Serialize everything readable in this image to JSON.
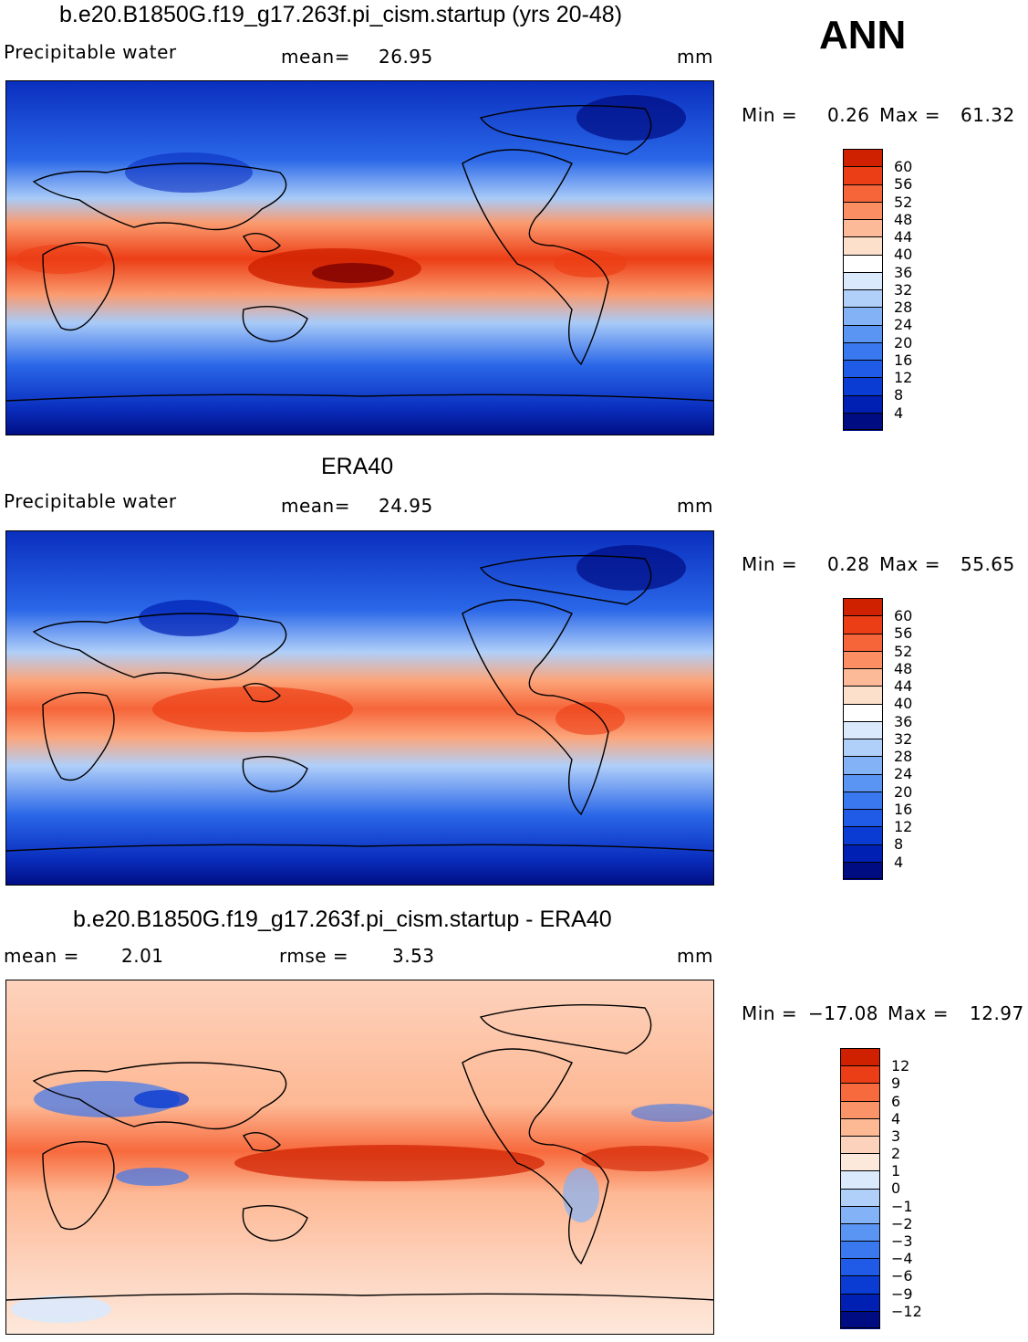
{
  "header": {
    "ann_label": "ANN"
  },
  "colors": {
    "abs_scale": [
      "#000c82",
      "#0020b4",
      "#0a3bd2",
      "#1f5be6",
      "#3a78ef",
      "#5b95f3",
      "#83b2f6",
      "#b0cff9",
      "#dae9fc",
      "#ffffff",
      "#fde0cc",
      "#fdba98",
      "#fb8f63",
      "#f6653a",
      "#ec3e16",
      "#cf2000",
      "#9c0b00",
      "#6e0000"
    ],
    "diff_scale": [
      "#000c82",
      "#0020b4",
      "#0a3bd2",
      "#1f5be6",
      "#3a78ef",
      "#5b95f3",
      "#83b2f6",
      "#b0cff9",
      "#dae9fc",
      "#fde9dc",
      "#fdd2bc",
      "#fdb894",
      "#fb9368",
      "#f76a3d",
      "#ec3e16",
      "#cf2000",
      "#9c0b00",
      "#6e0000"
    ]
  },
  "panels": [
    {
      "title": "b.e20.B1850G.f19_g17.263f.pi_cism.startup (yrs 20-48)",
      "left_label": "Precipitable  water",
      "mean_label": "mean=",
      "mean_value": "26.95",
      "units": "mm",
      "min_label": "Min  =",
      "min_value": "0.26",
      "max_label": "Max  =",
      "max_value": "61.32",
      "colorbar_ticks": [
        "60",
        "56",
        "52",
        "48",
        "44",
        "40",
        "36",
        "32",
        "28",
        "24",
        "20",
        "16",
        "12",
        "8",
        "4"
      ]
    },
    {
      "title": "ERA40",
      "left_label": "Precipitable  water",
      "mean_label": "mean=",
      "mean_value": "24.95",
      "units": "mm",
      "min_label": "Min  =",
      "min_value": "0.28",
      "max_label": "Max  =",
      "max_value": "55.65",
      "colorbar_ticks": [
        "60",
        "56",
        "52",
        "48",
        "44",
        "40",
        "36",
        "32",
        "28",
        "24",
        "20",
        "16",
        "12",
        "8",
        "4"
      ]
    },
    {
      "title": "b.e20.B1850G.f19_g17.263f.pi_cism.startup - ERA40",
      "left_label": "mean  =",
      "mean_label": "rmse  =",
      "mean_value": "2.01",
      "rmse_value": "3.53",
      "units": "mm",
      "min_label": "Min  =",
      "min_value": "−17.08",
      "max_label": "Max  =",
      "max_value": "12.97",
      "colorbar_ticks": [
        "12",
        "9",
        "6",
        "4",
        "3",
        "2",
        "1",
        "0",
        "−1",
        "−2",
        "−3",
        "−4",
        "−6",
        "−9",
        "−12"
      ]
    }
  ]
}
